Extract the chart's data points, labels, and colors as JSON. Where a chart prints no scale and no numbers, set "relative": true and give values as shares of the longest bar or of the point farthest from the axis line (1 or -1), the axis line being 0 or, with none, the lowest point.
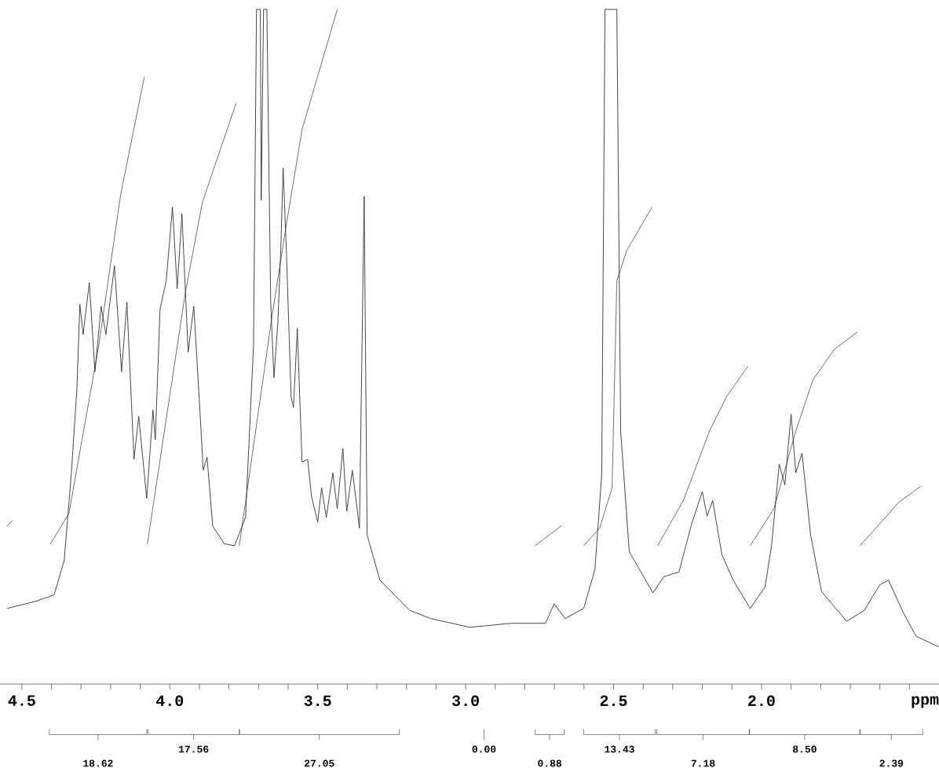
{
  "chart_data": {
    "type": "line",
    "relative": true,
    "xlabel": "ppm",
    "xlim": [
      4.574,
      1.4
    ],
    "xticks": [
      {
        "value": 4.5,
        "label": "4.5"
      },
      {
        "value": 4.4,
        "label": null
      },
      {
        "value": 4.3,
        "label": null
      },
      {
        "value": 4.2,
        "label": null
      },
      {
        "value": 4.1,
        "label": null
      },
      {
        "value": 4.0,
        "label": "4.0"
      },
      {
        "value": 3.9,
        "label": null
      },
      {
        "value": 3.8,
        "label": null
      },
      {
        "value": 3.7,
        "label": null
      },
      {
        "value": 3.6,
        "label": null
      },
      {
        "value": 3.5,
        "label": "3.5"
      },
      {
        "value": 3.4,
        "label": null
      },
      {
        "value": 3.3,
        "label": null
      },
      {
        "value": 3.2,
        "label": null
      },
      {
        "value": 3.1,
        "label": null
      },
      {
        "value": 3.0,
        "label": "3.0"
      },
      {
        "value": 2.9,
        "label": null
      },
      {
        "value": 2.8,
        "label": null
      },
      {
        "value": 2.7,
        "label": null
      },
      {
        "value": 2.6,
        "label": null
      },
      {
        "value": 2.5,
        "label": "2.5"
      },
      {
        "value": 2.4,
        "label": null
      },
      {
        "value": 2.3,
        "label": null
      },
      {
        "value": 2.2,
        "label": null
      },
      {
        "value": 2.1,
        "label": null
      },
      {
        "value": 2.0,
        "label": "2.0"
      },
      {
        "value": 1.9,
        "label": null
      },
      {
        "value": 1.8,
        "label": null
      },
      {
        "value": 1.7,
        "label": null
      },
      {
        "value": 1.6,
        "label": null
      },
      {
        "value": 1.5,
        "label": null
      }
    ],
    "series": [
      {
        "color": "#333333",
        "x": [
          4.55,
          4.458,
          4.391,
          4.357,
          4.333,
          4.314,
          4.304,
          4.293,
          4.272,
          4.253,
          4.232,
          4.216,
          4.187,
          4.163,
          4.145,
          4.121,
          4.105,
          4.078,
          4.057,
          4.049,
          4.033,
          4.012,
          3.991,
          3.975,
          3.959,
          3.938,
          3.919,
          3.9,
          3.887,
          3.874,
          3.855,
          3.816,
          3.781,
          3.744,
          3.717,
          3.707,
          3.694,
          3.691,
          3.683,
          3.672,
          3.659,
          3.648,
          3.635,
          3.625,
          3.617,
          3.606,
          3.59,
          3.582,
          3.569,
          3.553,
          3.534,
          3.521,
          3.5,
          3.487,
          3.471,
          3.449,
          3.434,
          3.415,
          3.402,
          3.383,
          3.359,
          3.343,
          3.333,
          3.29,
          3.189,
          3.118,
          2.985,
          2.847,
          2.73,
          2.701,
          2.664,
          2.601,
          2.563,
          2.54,
          2.529,
          2.489,
          2.476,
          2.447,
          2.367,
          2.33,
          2.279,
          2.237,
          2.2,
          2.184,
          2.165,
          2.134,
          2.096,
          2.038,
          1.988,
          1.966,
          1.94,
          1.921,
          1.9,
          1.884,
          1.863,
          1.834,
          1.797,
          1.712,
          1.653,
          1.6,
          1.571,
          1.521,
          1.478,
          1.401
        ],
        "values": [
          0.112,
          0.122,
          0.132,
          0.183,
          0.311,
          0.438,
          0.563,
          0.518,
          0.595,
          0.463,
          0.56,
          0.518,
          0.62,
          0.463,
          0.566,
          0.333,
          0.397,
          0.275,
          0.406,
          0.362,
          0.556,
          0.598,
          0.707,
          0.586,
          0.697,
          0.492,
          0.56,
          0.419,
          0.317,
          0.336,
          0.234,
          0.208,
          0.205,
          0.247,
          0.502,
          1.0,
          1.0,
          0.717,
          1.0,
          1.0,
          0.566,
          0.454,
          0.534,
          0.643,
          0.765,
          0.643,
          0.426,
          0.41,
          0.527,
          0.329,
          0.333,
          0.278,
          0.24,
          0.291,
          0.247,
          0.313,
          0.26,
          0.349,
          0.256,
          0.317,
          0.231,
          0.723,
          0.221,
          0.154,
          0.109,
          0.097,
          0.084,
          0.09,
          0.09,
          0.119,
          0.097,
          0.112,
          0.17,
          0.311,
          1.0,
          1.0,
          0.375,
          0.196,
          0.135,
          0.159,
          0.166,
          0.236,
          0.285,
          0.249,
          0.272,
          0.192,
          0.154,
          0.112,
          0.144,
          0.205,
          0.326,
          0.295,
          0.4,
          0.313,
          0.342,
          0.221,
          0.137,
          0.093,
          0.109,
          0.147,
          0.154,
          0.106,
          0.071,
          0.055
        ]
      },
      {
        "color": "#333333",
        "x": [
          4.55,
          4.532
        ],
        "values": [
          0.234,
          0.242
        ]
      },
      {
        "color": "#333333",
        "x": [
          4.404,
          4.341,
          4.24,
          4.166,
          4.086
        ],
        "values": [
          0.207,
          0.253,
          0.502,
          0.726,
          0.9
        ]
      },
      {
        "color": "#333333",
        "x": [
          4.076,
          3.948,
          3.89,
          3.776
        ],
        "values": [
          0.207,
          0.579,
          0.714,
          0.861
        ]
      },
      {
        "color": "#333333",
        "x": [
          3.765,
          3.656,
          3.611,
          3.553,
          3.434
        ],
        "values": [
          0.205,
          0.541,
          0.668,
          0.822,
          1.0
        ]
      },
      {
        "color": "#333333",
        "x": [
          2.765,
          2.675
        ],
        "values": [
          0.205,
          0.235
        ]
      },
      {
        "color": "#333333",
        "x": [
          2.601,
          2.547,
          2.505,
          2.489,
          2.455,
          2.37
        ],
        "values": [
          0.205,
          0.231,
          0.291,
          0.598,
          0.643,
          0.707
        ]
      },
      {
        "color": "#333333",
        "x": [
          2.351,
          2.264,
          2.176,
          2.118,
          2.046
        ],
        "values": [
          0.205,
          0.272,
          0.375,
          0.426,
          0.471
        ]
      },
      {
        "color": "#333333",
        "x": [
          2.038,
          1.958,
          1.884,
          1.826,
          1.754,
          1.675
        ],
        "values": [
          0.205,
          0.26,
          0.375,
          0.451,
          0.496,
          0.522
        ]
      },
      {
        "color": "#333333",
        "x": [
          1.667,
          1.595,
          1.537,
          1.462
        ],
        "values": [
          0.205,
          0.24,
          0.269,
          0.293
        ]
      }
    ],
    "annotations": [
      "18.62",
      "17.56",
      "27.05",
      "0.00",
      "0.88",
      "13.43",
      "7.18",
      "8.50",
      "2.39"
    ]
  }
}
